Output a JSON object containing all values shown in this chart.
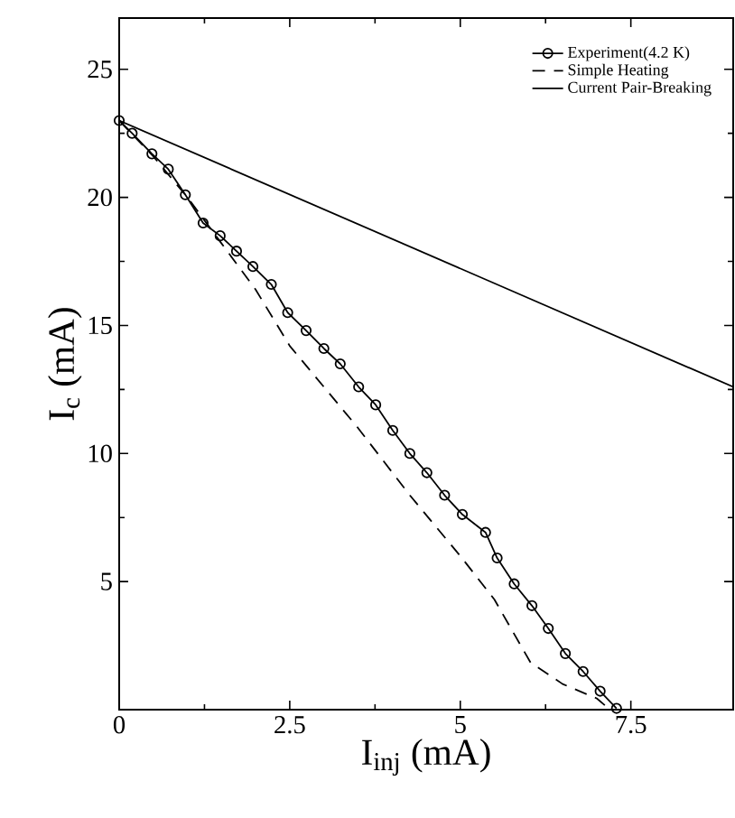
{
  "chart_data": {
    "type": "line",
    "xlabel": "I$_{inj}$ (mA)",
    "ylabel": "I$_{c}$ (mA)",
    "xlim": [
      0,
      9
    ],
    "ylim": [
      0,
      27
    ],
    "xticks": [
      0,
      2.5,
      5,
      7.5
    ],
    "yticks": [
      5,
      10,
      15,
      20,
      25
    ],
    "legend": "top right",
    "series": [
      {
        "name": "Experiment(4.2 K)",
        "color": "#000000",
        "marker": "circle",
        "line_style": "solid",
        "x": [
          0,
          0.19,
          0.48,
          0.72,
          0.97,
          1.23,
          1.48,
          1.72,
          1.96,
          2.23,
          2.47,
          2.74,
          3.0,
          3.24,
          3.51,
          3.76,
          4.01,
          4.26,
          4.51,
          4.77,
          5.03,
          5.37,
          5.54,
          5.79,
          6.05,
          6.29,
          6.54,
          6.8,
          7.05,
          7.29
        ],
        "values": [
          23,
          22.5,
          21.7,
          21.1,
          20.1,
          19.0,
          18.5,
          17.9,
          17.3,
          16.6,
          15.5,
          14.8,
          14.1,
          13.5,
          12.6,
          11.9,
          10.9,
          10.0,
          9.25,
          8.37,
          7.62,
          6.92,
          5.92,
          4.91,
          4.06,
          3.17,
          2.19,
          1.49,
          0.72,
          0.05
        ]
      },
      {
        "name": "Simple Heating",
        "color": "#000000",
        "marker": "none",
        "line_style": "dashed",
        "x": [
          0,
          0.5,
          1.0,
          1.5,
          2.0,
          2.5,
          3.0,
          3.5,
          4.26,
          5.0,
          5.5,
          6.03,
          6.5,
          7.0,
          7.15
        ],
        "values": [
          23,
          21.6,
          20.0,
          18.2,
          16.4,
          14.2,
          12.6,
          11.0,
          8.37,
          6.0,
          4.3,
          1.84,
          1.0,
          0.44,
          0.1
        ]
      },
      {
        "name": "Current Pair-Breaking",
        "color": "#000000",
        "marker": "none",
        "line_style": "solid",
        "x": [
          0,
          9
        ],
        "values": [
          23,
          12.6
        ]
      }
    ]
  }
}
